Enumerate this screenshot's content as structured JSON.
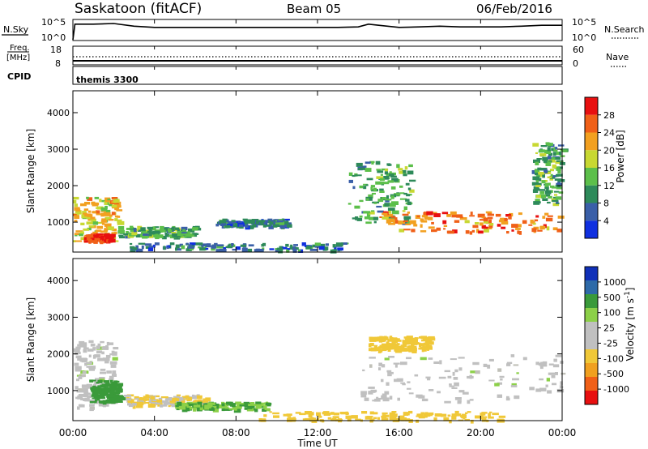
{
  "header": {
    "title": "Saskatoon (fitACF)",
    "beam": "Beam 05",
    "date": "06/Feb/2016"
  },
  "nsky_panel": {
    "left_label": "N.Sky",
    "left_ticks": [
      "10^5",
      "10^0"
    ],
    "right_ticks": [
      "10^5",
      "10^0"
    ],
    "right_label": "N.Search"
  },
  "freq_panel": {
    "left_label_line1": "Freq.",
    "left_label_line2": "[MHz]",
    "left_ticks": [
      "18",
      "8"
    ],
    "right_ticks": [
      "60",
      "0"
    ],
    "right_label": "Nave"
  },
  "cpid_panel": {
    "label": "CPID",
    "value": "themis 3300"
  },
  "x_axis": {
    "ticks": [
      "00:00",
      "04:00",
      "08:00",
      "12:00",
      "16:00",
      "20:00",
      "00:00"
    ],
    "label": "Time UT"
  },
  "colors": {
    "power_scale": [
      "#1030e0",
      "#3a5fa8",
      "#2e8a5a",
      "#5cbf4a",
      "#c8d832",
      "#f2a020",
      "#f06018",
      "#e81010"
    ],
    "velocity_scale": [
      "#e81010",
      "#f06018",
      "#f0a020",
      "#f0c838",
      "#c0c0c0",
      "#c0c0c0",
      "#8cd048",
      "#3a9a3a",
      "#2e6aa8",
      "#1030b8"
    ],
    "ground_scatter": "#c0c0b8"
  },
  "chart_data": [
    {
      "type": "line",
      "title": "N.Sky / N.Search",
      "x": [
        0,
        0.1,
        1,
        2,
        3,
        4,
        5,
        6,
        7,
        8,
        9,
        10,
        11,
        12,
        13,
        14,
        14.5,
        15,
        16,
        17,
        18,
        19,
        20,
        21,
        22,
        23,
        24
      ],
      "series": [
        {
          "name": "N.Sky",
          "values": [
            1.0,
            10000.0,
            10000.0,
            15000.0,
            3000.0,
            1500.0,
            1500.0,
            1500.0,
            1500.0,
            1500.0,
            1500.0,
            1500.0,
            1500.0,
            1500.0,
            1500.0,
            2000.0,
            10000.0,
            5000.0,
            1500.0,
            2000.0,
            3000.0,
            2000.0,
            2000.0,
            2000.0,
            3000.0,
            5000.0,
            5000.0
          ]
        }
      ],
      "ylim": [
        1,
        100000
      ]
    },
    {
      "type": "line",
      "title": "Freq / Nave",
      "x": [
        0,
        4,
        8,
        12,
        16,
        20,
        24
      ],
      "series": [
        {
          "name": "Freq.",
          "values": [
            10.2,
            10.2,
            10.2,
            10.2,
            10.2,
            10.2,
            10.2
          ]
        },
        {
          "name": "Nave",
          "values": [
            30,
            30,
            30,
            30,
            30,
            30,
            30
          ]
        }
      ],
      "ylim": [
        8,
        18
      ]
    },
    {
      "type": "heatmap",
      "title": "Power [dB]",
      "xlabel": "Time UT",
      "ylabel": "Slant Range [km]",
      "xlim": [
        0,
        24
      ],
      "ylim": [
        180,
        4600
      ],
      "y_ticks": [
        1000,
        2000,
        3000,
        4000
      ],
      "colorbar": {
        "label": "Power [dB]",
        "ticks": [
          4,
          8,
          12,
          16,
          20,
          24,
          28
        ]
      },
      "regions": [
        {
          "t": [
            0.0,
            2.2
          ],
          "r": [
            500,
            1700
          ],
          "value": 20
        },
        {
          "t": [
            0.5,
            1.8
          ],
          "r": [
            500,
            700
          ],
          "value": 28
        },
        {
          "t": [
            2.2,
            6.0
          ],
          "r": [
            600,
            900
          ],
          "value": 12
        },
        {
          "t": [
            7.0,
            10.5
          ],
          "r": [
            900,
            1100
          ],
          "value": 8
        },
        {
          "t": [
            2.5,
            13.5
          ],
          "r": [
            250,
            450
          ],
          "value": 8
        },
        {
          "t": [
            13.5,
            16.5
          ],
          "r": [
            1000,
            2700
          ],
          "value": 12
        },
        {
          "t": [
            15.0,
            23.8
          ],
          "r": [
            750,
            1300
          ],
          "value": 24
        },
        {
          "t": [
            22.5,
            24.0
          ],
          "r": [
            1500,
            3200
          ],
          "value": 12
        }
      ]
    },
    {
      "type": "heatmap",
      "title": "Velocity [m s^-1]",
      "xlabel": "Time UT",
      "ylabel": "Slant Range [km]",
      "xlim": [
        0,
        24
      ],
      "ylim": [
        180,
        4600
      ],
      "y_ticks": [
        1000,
        2000,
        3000,
        4000
      ],
      "colorbar": {
        "label": "Velocity [m s^-1]",
        "ticks": [
          1000,
          500,
          100,
          25,
          -25,
          -100,
          -500,
          -1000
        ]
      },
      "regions": [
        {
          "t": [
            0.0,
            2.0
          ],
          "r": [
            500,
            2400
          ],
          "value": 0
        },
        {
          "t": [
            0.8,
            2.3
          ],
          "r": [
            700,
            1300
          ],
          "value": 150
        },
        {
          "t": [
            2.5,
            6.5
          ],
          "r": [
            600,
            900
          ],
          "value": -100
        },
        {
          "t": [
            5.0,
            9.5
          ],
          "r": [
            500,
            700
          ],
          "value": 100
        },
        {
          "t": [
            14.0,
            24.0
          ],
          "r": [
            700,
            2000
          ],
          "value": 0
        },
        {
          "t": [
            14.5,
            17.5
          ],
          "r": [
            2100,
            2500
          ],
          "value": -300
        },
        {
          "t": [
            9.0,
            21.0
          ],
          "r": [
            200,
            450
          ],
          "value": -200
        }
      ]
    }
  ]
}
